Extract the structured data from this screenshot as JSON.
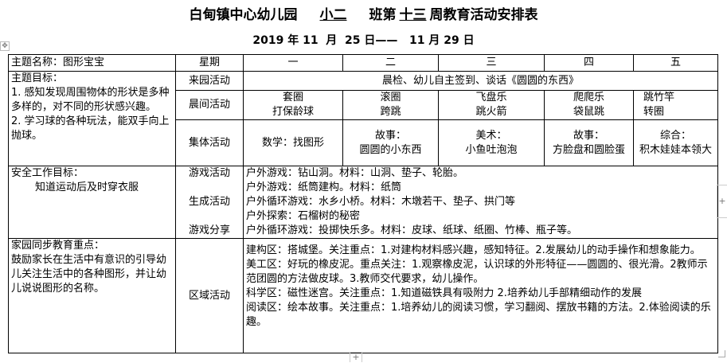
{
  "title": {
    "prefix": "白甸镇中心幼儿园",
    "class_name": "小二",
    "mid": "班第",
    "week": "十三",
    "suffix": "周教育活动安排表"
  },
  "date_range": "2019 年 11  月  25 日——   11 月 29 日",
  "table": {
    "theme_name": "主题名称：图形宝宝",
    "weekday_header": "星期",
    "days": [
      "一",
      "二",
      "三",
      "四",
      "五"
    ],
    "theme_goal": {
      "label": "主题目标：",
      "lines": [
        "1. 感知发现周围物体的形状是多种多样的，对不同的形状感兴趣。",
        "2. 学习球的各种玩法，能双手向上抛球。"
      ]
    },
    "arrival": {
      "label": "来园活动",
      "content": "晨检、幼儿自主签到、谈话《圆圆的东西》"
    },
    "morning": {
      "label": "晨间活动",
      "days": [
        [
          "套圈",
          "打保龄球"
        ],
        [
          "滚圈",
          "跨跳"
        ],
        [
          "飞盘乐",
          "跳火箭"
        ],
        [
          "爬爬乐",
          "袋鼠跳"
        ],
        [
          "跳竹竿",
          "转圈"
        ]
      ]
    },
    "group": {
      "label": "集体活动",
      "days": [
        [
          "数学：找图形"
        ],
        [
          "故事：",
          "圆圆的小东西"
        ],
        [
          "美术：",
          "小鱼吐泡泡"
        ],
        [
          "故事：",
          "方脸盘和圆脸蛋"
        ],
        [
          "综合：",
          "积木娃娃本领大"
        ]
      ]
    },
    "safety": {
      "label": "安全工作目标：",
      "content": "知道运动后及时穿衣服",
      "sub_labels": [
        "游戏活动",
        "生成活动",
        "游戏分享"
      ],
      "lines": [
        "户外游戏：钻山洞。材料：山洞、垫子、轮胎。",
        "户外游戏：纸筒建构。材料：纸筒",
        "户外循环游戏：水乡小桥。材料：木墩若干、垫子、拱门等",
        "户外探索：石榴树的秘密",
        "户外循环游戏：投掷快乐多。材料：皮球、纸球、纸圈、竹棒、瓶子等。"
      ]
    },
    "home": {
      "label": "家园同步教育重点：",
      "content": "鼓励家长在生活中有意识的引导幼儿关注生活中的各种图形，并让幼儿说说图形的名称。",
      "area_label": "区域活动",
      "areas": [
        "建构区：搭城堡。关注重点：1.对建构材料感兴趣，感知特征。2.发展幼儿的动手操作和想象能力。",
        "美工区：好玩的橡皮泥。重点关注：1.观察橡皮泥，认识球的外形特征——圆圆的、很光滑。2教师示范团圆的方法做皮球。3.教师交代要求，幼儿操作。",
        "科学区：磁性迷宫。关注重点：1.知道磁铁具有吸附力 2.培养幼儿手部精细动作的发展",
        "阅读区：绘本故事。关注重点：1.培养幼儿的阅读习惯，学习翻阅、摆放书籍的方法。2.体验阅读的乐趣。"
      ]
    }
  }
}
